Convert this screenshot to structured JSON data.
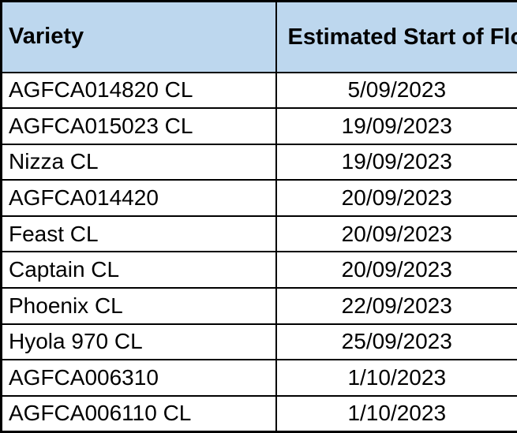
{
  "chart_data": {
    "type": "table",
    "columns": [
      "Variety",
      "Estimated Start of Flowering Date"
    ],
    "rows": [
      [
        "AGFCA014820 CL",
        "5/09/2023"
      ],
      [
        "AGFCA015023 CL",
        "19/09/2023"
      ],
      [
        "Nizza CL",
        "19/09/2023"
      ],
      [
        "AGFCA014420",
        "20/09/2023"
      ],
      [
        "Feast CL",
        "20/09/2023"
      ],
      [
        "Captain CL",
        "20/09/2023"
      ],
      [
        "Phoenix CL",
        "22/09/2023"
      ],
      [
        "Hyola 970 CL",
        "25/09/2023"
      ],
      [
        "AGFCA006310",
        "1/10/2023"
      ],
      [
        "AGFCA006110 CL",
        "1/10/2023"
      ]
    ]
  },
  "table": {
    "headers": {
      "variety": "Variety",
      "date": "Estimated Start of Flowering Date"
    },
    "rows": [
      {
        "variety": "AGFCA014820 CL",
        "date": "5/09/2023"
      },
      {
        "variety": "AGFCA015023 CL",
        "date": "19/09/2023"
      },
      {
        "variety": "Nizza CL",
        "date": "19/09/2023"
      },
      {
        "variety": "AGFCA014420",
        "date": "20/09/2023"
      },
      {
        "variety": "Feast CL",
        "date": "20/09/2023"
      },
      {
        "variety": "Captain CL",
        "date": "20/09/2023"
      },
      {
        "variety": "Phoenix CL",
        "date": "22/09/2023"
      },
      {
        "variety": "Hyola 970 CL",
        "date": "25/09/2023"
      },
      {
        "variety": "AGFCA006310",
        "date": "1/10/2023"
      },
      {
        "variety": "AGFCA006110 CL",
        "date": "1/10/2023"
      }
    ]
  },
  "colors": {
    "header_bg": "#BDD7EE",
    "border": "#000000",
    "text": "#000000",
    "row_bg": "#FFFFFF"
  }
}
